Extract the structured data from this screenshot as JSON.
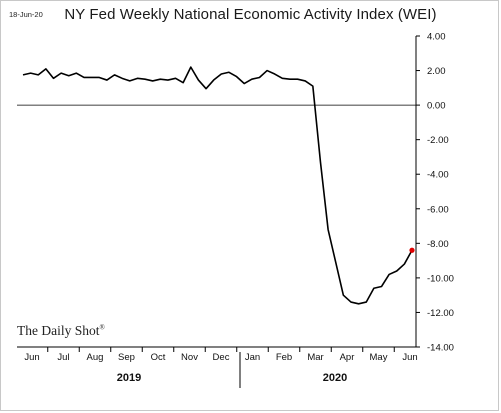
{
  "header": {
    "date_stamp": "18-Jun-20",
    "title": "NY Fed Weekly National Economic Activity Index (WEI)"
  },
  "watermark": {
    "text": "The Daily Shot",
    "mark": "®"
  },
  "colors": {
    "line": "#000000",
    "last_point": "#e00000",
    "zero_line": "#000000"
  },
  "chart_data": {
    "type": "line",
    "title": "NY Fed Weekly National Economic Activity Index (WEI)",
    "xlabel": "",
    "ylabel": "",
    "ylim": [
      -14,
      4
    ],
    "y_ticks": [
      4,
      2,
      0,
      -2,
      -4,
      -6,
      -8,
      -10,
      -12,
      -14
    ],
    "y_tick_labels": [
      "4.00",
      "2.00",
      "0.00",
      "-2.00",
      "-4.00",
      "-6.00",
      "-8.00",
      "-10.00",
      "-12.00",
      "-14.00"
    ],
    "y_axis_side": "right",
    "grid": false,
    "zero_line": true,
    "month_labels": [
      "Jun",
      "Jul",
      "Aug",
      "Sep",
      "Oct",
      "Nov",
      "Dec",
      "Jan",
      "Feb",
      "Mar",
      "Apr",
      "May",
      "Jun"
    ],
    "year_labels": [
      "2019",
      "2020"
    ],
    "series": [
      {
        "values": [
          1.75,
          1.85,
          1.75,
          2.1,
          1.55,
          1.85,
          1.7,
          1.85,
          1.6,
          1.6,
          1.6,
          1.45,
          1.75,
          1.55,
          1.4,
          1.55,
          1.5,
          1.4,
          1.5,
          1.45,
          1.55,
          1.3,
          2.2,
          1.45,
          0.95,
          1.45,
          1.8,
          1.9,
          1.65,
          1.25,
          1.5,
          1.6,
          2.0,
          1.8,
          1.55,
          1.5,
          1.5,
          1.4,
          1.1,
          -3.3,
          -7.2,
          -9.1,
          -11.0,
          -11.4,
          -11.5,
          -11.4,
          -10.6,
          -10.5,
          -9.8,
          -9.6,
          -9.2,
          -8.4
        ],
        "last_point_highlight": true
      }
    ]
  }
}
